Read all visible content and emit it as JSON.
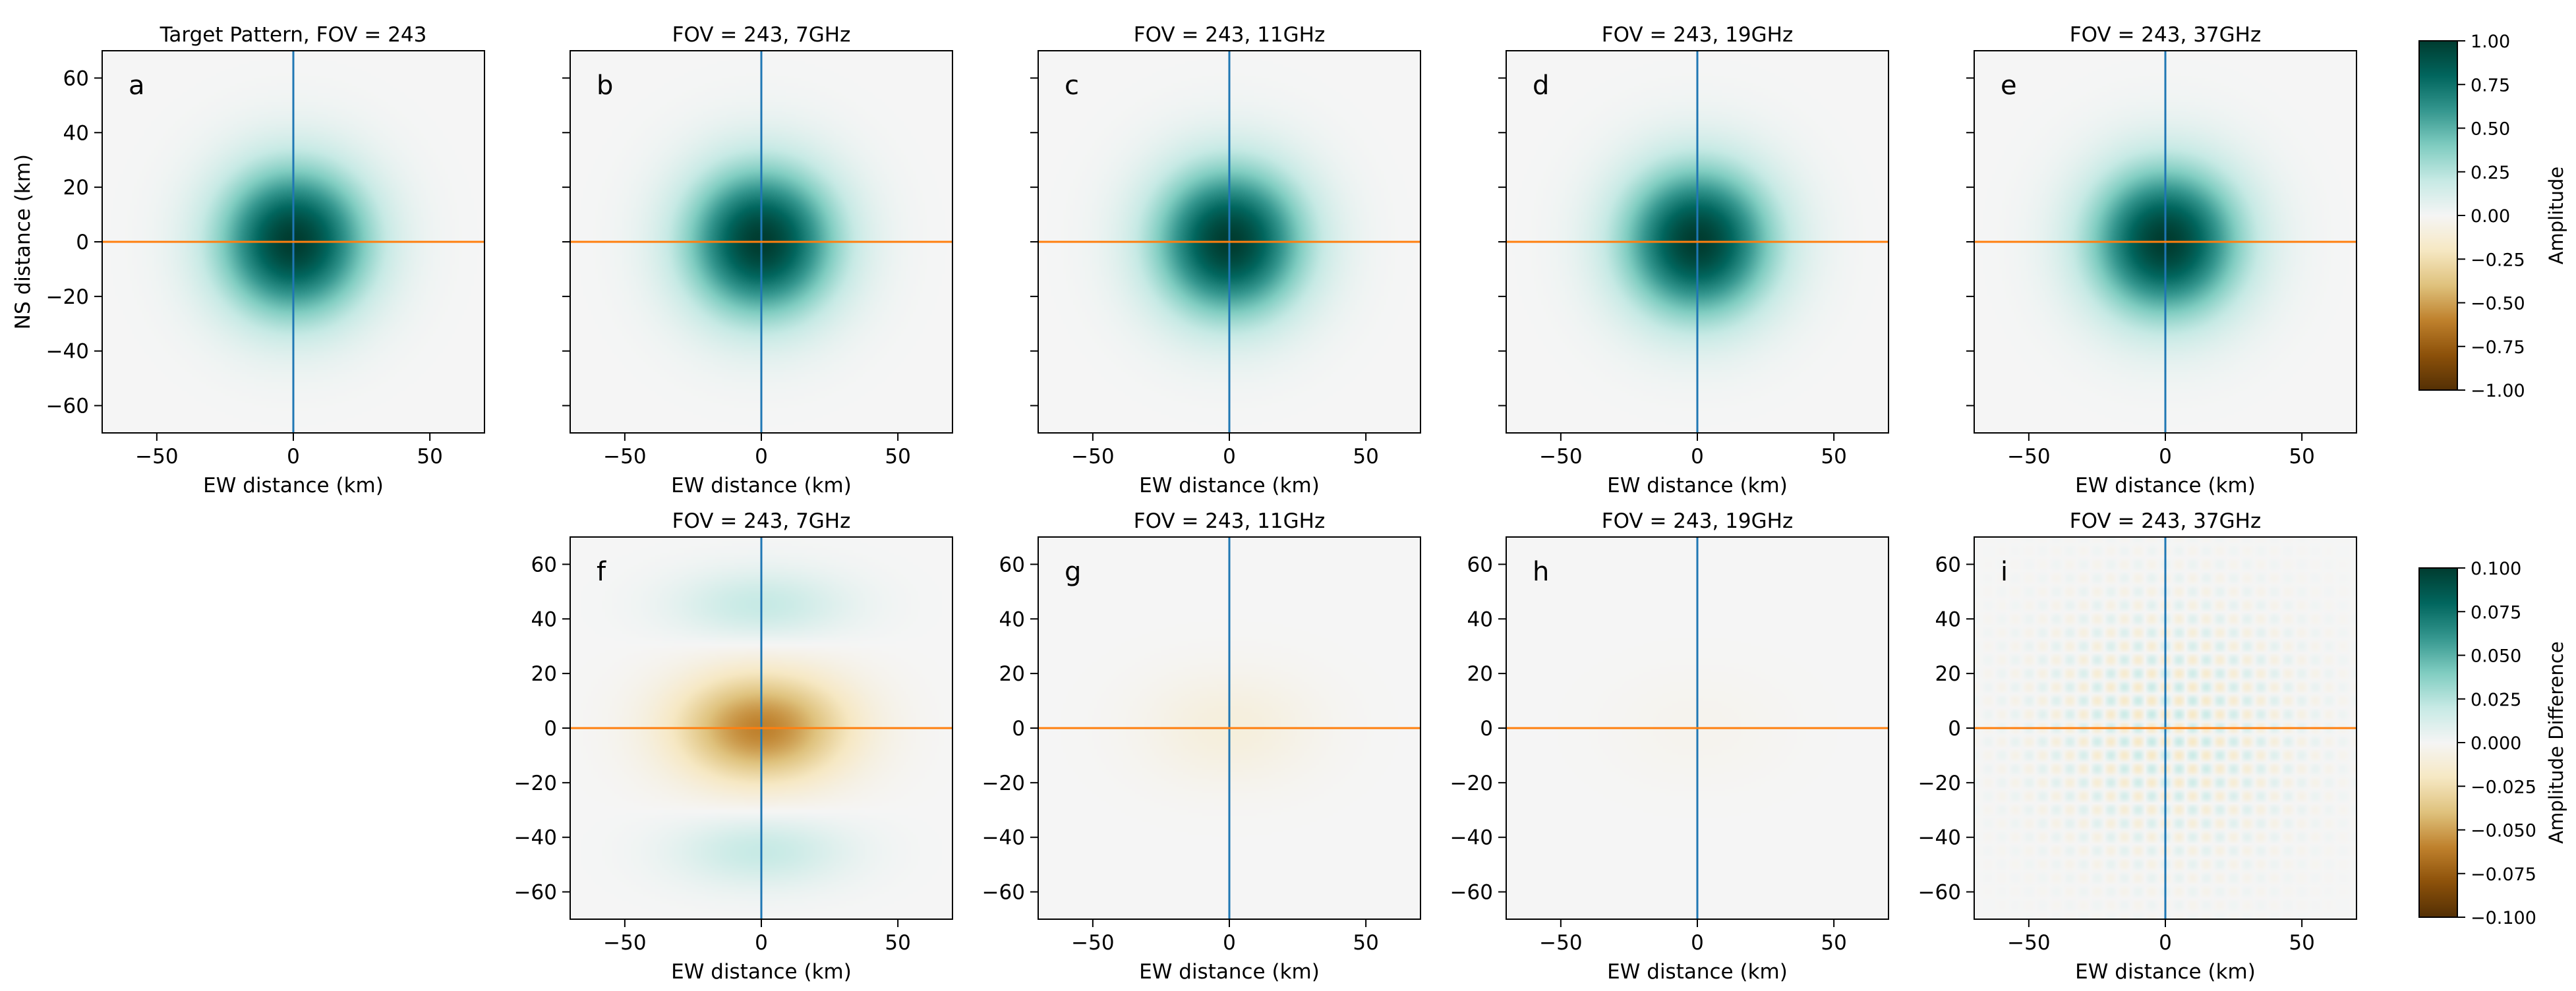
{
  "figure": {
    "xlabel": "EW distance (km)",
    "ylabel": "NS distance (km)",
    "axis_range": [
      -70,
      70
    ],
    "x_ticks": [
      -50,
      0,
      50
    ],
    "y_ticks": [
      60,
      40,
      20,
      0,
      -20,
      -40,
      -60
    ],
    "x_tick_labels": [
      "−50",
      "0",
      "50"
    ],
    "y_tick_labels": [
      "60",
      "40",
      "20",
      "0",
      "−20",
      "−40",
      "−60"
    ],
    "cut_line_colors": {
      "vertical": "#1f77b4",
      "horizontal": "#ff7f0e"
    },
    "colormap": "BrBG",
    "colormap_stops": [
      "#543005",
      "#8c510a",
      "#bf812d",
      "#dfc27d",
      "#f6e8c3",
      "#f5f5f5",
      "#c7eae5",
      "#80cdc1",
      "#35978f",
      "#01665e",
      "#003c30"
    ]
  },
  "chart_data": [
    {
      "type": "heatmap",
      "panel": "a",
      "row": "amplitude",
      "title": "Target Pattern, FOV = 243",
      "label": "a",
      "xlabel": "EW distance (km)",
      "ylabel": "NS distance (km)",
      "xlim": [
        -70,
        70
      ],
      "ylim": [
        -70,
        70
      ],
      "peak_amplitude": 1.0,
      "half_width_km": 45,
      "vlines_x": [
        0
      ],
      "hlines_y": [
        0
      ]
    },
    {
      "type": "heatmap",
      "panel": "b",
      "row": "amplitude",
      "title": "FOV = 243, 7GHz",
      "label": "b",
      "xlabel": "EW distance (km)",
      "ylabel": "",
      "xlim": [
        -70,
        70
      ],
      "ylim": [
        -70,
        70
      ],
      "peak_amplitude": 1.0,
      "half_width_km": 45,
      "vlines_x": [
        0
      ],
      "hlines_y": [
        0
      ]
    },
    {
      "type": "heatmap",
      "panel": "c",
      "row": "amplitude",
      "title": "FOV = 243, 11GHz",
      "label": "c",
      "xlabel": "EW distance (km)",
      "ylabel": "",
      "xlim": [
        -70,
        70
      ],
      "ylim": [
        -70,
        70
      ],
      "peak_amplitude": 1.0,
      "half_width_km": 45,
      "vlines_x": [
        0
      ],
      "hlines_y": [
        0
      ]
    },
    {
      "type": "heatmap",
      "panel": "d",
      "row": "amplitude",
      "title": "FOV = 243, 19GHz",
      "label": "d",
      "xlabel": "EW distance (km)",
      "ylabel": "",
      "xlim": [
        -70,
        70
      ],
      "ylim": [
        -70,
        70
      ],
      "peak_amplitude": 1.0,
      "half_width_km": 45,
      "vlines_x": [
        0
      ],
      "hlines_y": [
        0
      ]
    },
    {
      "type": "heatmap",
      "panel": "e",
      "row": "amplitude",
      "title": "FOV = 243, 37GHz",
      "label": "e",
      "xlabel": "EW distance (km)",
      "ylabel": "",
      "xlim": [
        -70,
        70
      ],
      "ylim": [
        -70,
        70
      ],
      "peak_amplitude": 1.0,
      "half_width_km": 45,
      "vlines_x": [
        0
      ],
      "hlines_y": [
        0
      ]
    },
    {
      "type": "heatmap",
      "panel": "f",
      "row": "difference",
      "title": "FOV = 243, 7GHz",
      "label": "f",
      "xlabel": "EW distance (km)",
      "ylabel": "",
      "xlim": [
        -70,
        70
      ],
      "ylim": [
        -70,
        70
      ],
      "center_min": -0.06,
      "side_lobe_max": 0.02,
      "side_lobe_y_km": [
        45,
        -45
      ],
      "vlines_x": [
        0
      ],
      "hlines_y": [
        0
      ]
    },
    {
      "type": "heatmap",
      "panel": "g",
      "row": "difference",
      "title": "FOV = 243, 11GHz",
      "label": "g",
      "xlabel": "EW distance (km)",
      "ylabel": "",
      "xlim": [
        -70,
        70
      ],
      "ylim": [
        -70,
        70
      ],
      "center_min": -0.01,
      "vlines_x": [
        0
      ],
      "hlines_y": [
        0
      ]
    },
    {
      "type": "heatmap",
      "panel": "h",
      "row": "difference",
      "title": "FOV = 243, 19GHz",
      "label": "h",
      "xlabel": "EW distance (km)",
      "ylabel": "",
      "xlim": [
        -70,
        70
      ],
      "ylim": [
        -70,
        70
      ],
      "center_min": -0.003,
      "vlines_x": [
        0
      ],
      "hlines_y": [
        0
      ]
    },
    {
      "type": "heatmap",
      "panel": "i",
      "row": "difference",
      "title": "FOV = 243, 37GHz",
      "label": "i",
      "xlabel": "EW distance (km)",
      "ylabel": "",
      "xlim": [
        -70,
        70
      ],
      "ylim": [
        -70,
        70
      ],
      "ripple_amplitude": 0.02,
      "ripple_spacing_km": 10,
      "vlines_x": [
        0
      ],
      "hlines_y": [
        0
      ]
    }
  ],
  "colorbars": [
    {
      "name": "amplitude",
      "label": "Amplitude",
      "range": [
        -1.0,
        1.0
      ],
      "ticks": [
        1.0,
        0.75,
        0.5,
        0.25,
        0.0,
        -0.25,
        -0.5,
        -0.75,
        -1.0
      ],
      "tick_labels": [
        "1.00",
        "0.75",
        "0.50",
        "0.25",
        "0.00",
        "−0.25",
        "−0.50",
        "−0.75",
        "−1.00"
      ]
    },
    {
      "name": "difference",
      "label": "Amplitude Difference",
      "range": [
        -0.1,
        0.1
      ],
      "ticks": [
        0.1,
        0.075,
        0.05,
        0.025,
        0.0,
        -0.025,
        -0.05,
        -0.075,
        -0.1
      ],
      "tick_labels": [
        "0.100",
        "0.075",
        "0.050",
        "0.025",
        "0.000",
        "−0.025",
        "−0.050",
        "−0.075",
        "−0.100"
      ]
    }
  ]
}
